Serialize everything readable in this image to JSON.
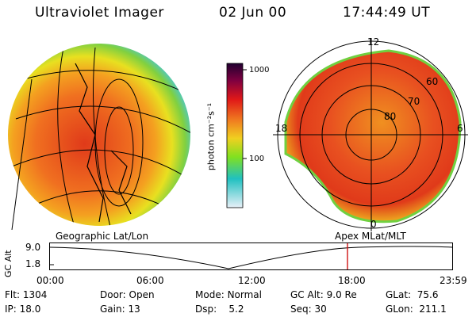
{
  "header": {
    "title": "Ultraviolet Imager",
    "date": "02 Jun 00",
    "time": "17:44:49 UT"
  },
  "panels": {
    "geographic_label": "Geographic Lat/Lon",
    "apex_label": "Apex MLat/MLT"
  },
  "colorbar": {
    "unit_label": "photon cm⁻²s⁻¹",
    "ticks": [
      "1000",
      "100"
    ]
  },
  "polar_plot": {
    "mlt_labels": [
      "12",
      "18",
      "6",
      "0"
    ],
    "lat_labels": [
      "80",
      "70",
      "60"
    ]
  },
  "timeline": {
    "axis_label": "GC Alt",
    "y_ticks": [
      "9.0",
      "1.8"
    ],
    "x_ticks": [
      "00:00",
      "06:00",
      "12:00",
      "18:00",
      "23:59"
    ],
    "current_time_marker": "17:44"
  },
  "status": {
    "flt_label": "Flt:",
    "flt_value": "1304",
    "ip_label": "IP:",
    "ip_value": "18.0",
    "door_label": "Door:",
    "door_value": "Open",
    "gain_label": "Gain:",
    "gain_value": "13",
    "mode_label": "Mode:",
    "mode_value": "Normal",
    "dsp_label": "Dsp:",
    "dsp_value": "5.2",
    "gcalt_label": "GC Alt:",
    "gcalt_value": "9.0 Re",
    "seq_label": "Seq:",
    "seq_value": "30",
    "glat_label": "GLat:",
    "glat_value": "75.6",
    "glon_label": "GLon:",
    "glon_value": "211.1"
  },
  "colors": {
    "marker": "#cc0000"
  }
}
